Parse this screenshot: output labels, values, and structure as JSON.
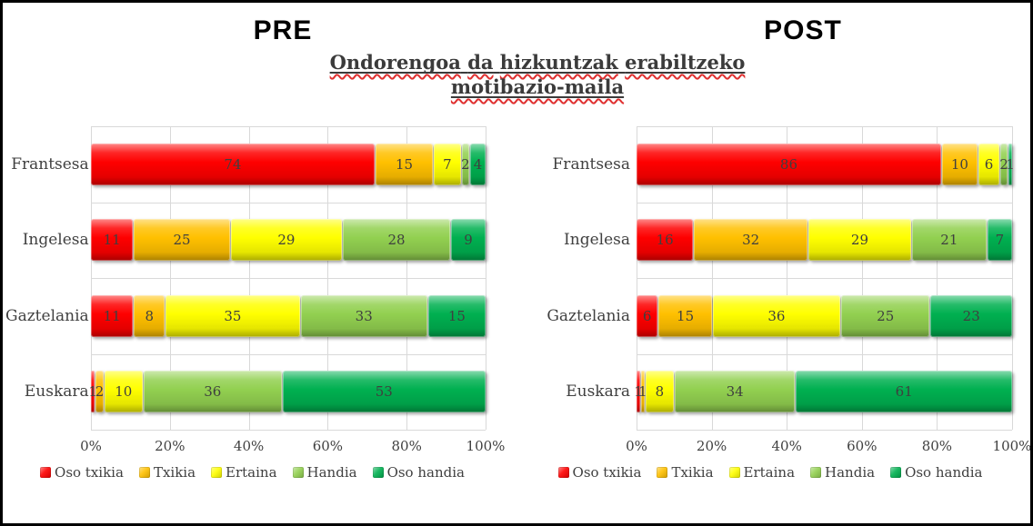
{
  "headers": {
    "pre": "PRE",
    "post": "POST"
  },
  "title": {
    "lines": [
      "Ondorengoa da hizkuntzak erabiltzeko",
      "motibazio-maila"
    ],
    "text_color": "#3b3b3b",
    "spellcheck_squiggle_color": "#e03030"
  },
  "colors": {
    "oso_txikia": "#fe0000",
    "txikia": "#ffc000",
    "ertaina": "#ffff00",
    "handia": "#92d050",
    "oso_handia": "#00b050",
    "gridline": "#d9d9d9",
    "text": "#404040"
  },
  "chart_data": [
    {
      "type": "bar",
      "orientation": "horizontal",
      "stacked": true,
      "percent_stacked": true,
      "title": "PRE",
      "categories": [
        "Frantsesa",
        "Ingelesa",
        "Gaztelania",
        "Euskara"
      ],
      "series": [
        {
          "name": "Oso txikia",
          "color": "#fe0000",
          "values": [
            74,
            11,
            11,
            1
          ]
        },
        {
          "name": "Txikia",
          "color": "#ffc000",
          "values": [
            15,
            25,
            8,
            2
          ]
        },
        {
          "name": "Ertaina",
          "color": "#ffff00",
          "values": [
            7,
            29,
            35,
            10
          ]
        },
        {
          "name": "Handia",
          "color": "#92d050",
          "values": [
            2,
            28,
            33,
            36
          ]
        },
        {
          "name": "Oso handia",
          "color": "#00b050",
          "values": [
            4,
            9,
            15,
            53
          ]
        }
      ],
      "x_ticks": [
        "0%",
        "20%",
        "40%",
        "60%",
        "80%",
        "100%"
      ],
      "xlim": [
        0,
        100
      ],
      "grid": true,
      "legend_position": "bottom"
    },
    {
      "type": "bar",
      "orientation": "horizontal",
      "stacked": true,
      "percent_stacked": true,
      "title": "POST",
      "categories": [
        "Frantsesa",
        "Ingelesa",
        "Gaztelania",
        "Euskara"
      ],
      "series": [
        {
          "name": "Oso txikia",
          "color": "#fe0000",
          "values": [
            86,
            16,
            6,
            1
          ]
        },
        {
          "name": "Txikia",
          "color": "#ffc000",
          "values": [
            10,
            32,
            15,
            1
          ]
        },
        {
          "name": "Ertaina",
          "color": "#ffff00",
          "values": [
            6,
            29,
            36,
            8
          ]
        },
        {
          "name": "Handia",
          "color": "#92d050",
          "values": [
            2,
            21,
            25,
            34
          ]
        },
        {
          "name": "Oso handia",
          "color": "#00b050",
          "values": [
            1,
            7,
            23,
            61
          ]
        }
      ],
      "x_ticks": [
        "0%",
        "20%",
        "40%",
        "60%",
        "80%",
        "100%"
      ],
      "xlim": [
        0,
        100
      ],
      "grid": true,
      "legend_position": "bottom"
    }
  ]
}
